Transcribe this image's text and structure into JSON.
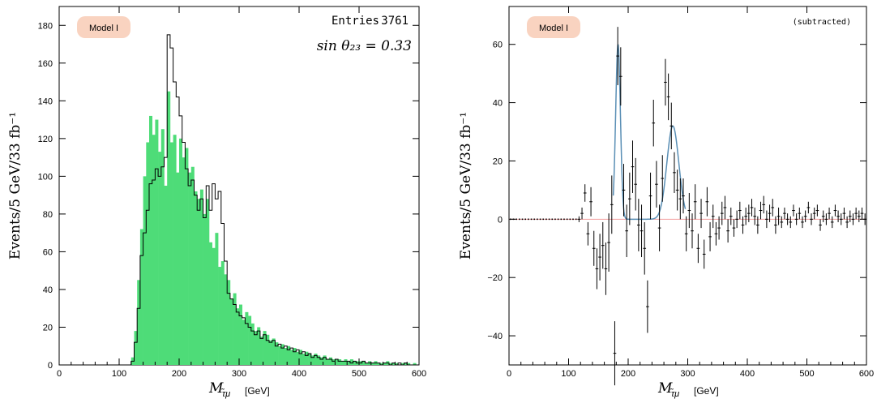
{
  "chart_data": [
    {
      "type": "bar",
      "badge": "Model I",
      "stat_label": "Entries",
      "stat_value": "3761",
      "annotation": "sin θ₂₃ = 0.33",
      "xlabel": "M",
      "xlabel_sub": "τ̃μ",
      "xlabel_unit": "[GeV]",
      "ylabel": "Events/5 GeV/33 fb⁻¹",
      "xlim": [
        0,
        600
      ],
      "ylim": [
        0,
        190
      ],
      "x_ticks": [
        0,
        100,
        200,
        300,
        400,
        500,
        600
      ],
      "y_ticks": [
        0,
        20,
        40,
        60,
        80,
        100,
        120,
        140,
        160,
        180
      ],
      "bin_width": 5,
      "colors": {
        "filled": "#4edc78",
        "outline": "#000000"
      },
      "series": [
        {
          "style": "filled",
          "x": [
            120,
            125,
            130,
            135,
            140,
            145,
            150,
            155,
            160,
            165,
            170,
            175,
            180,
            185,
            190,
            195,
            200,
            205,
            210,
            215,
            220,
            225,
            230,
            235,
            240,
            245,
            250,
            255,
            260,
            265,
            270,
            275,
            280,
            285,
            290,
            295,
            300,
            305,
            310,
            315,
            320,
            325,
            330,
            335,
            340,
            345,
            350,
            355,
            360,
            365,
            370,
            375,
            380,
            385,
            390,
            395,
            400,
            405,
            410,
            415,
            420,
            425,
            430,
            435,
            440,
            445,
            450,
            455,
            460,
            465,
            470,
            475,
            480,
            485,
            490,
            495,
            500,
            505,
            510,
            515,
            520,
            525,
            530,
            535,
            540,
            545,
            550,
            555,
            560,
            565,
            570,
            575,
            580,
            585,
            590,
            595
          ],
          "values": [
            4,
            18,
            45,
            72,
            100,
            118,
            132,
            122,
            130,
            113,
            125,
            95,
            145,
            118,
            122,
            102,
            120,
            110,
            115,
            102,
            105,
            92,
            88,
            93,
            80,
            88,
            65,
            62,
            70,
            52,
            55,
            48,
            45,
            35,
            38,
            30,
            32,
            24,
            28,
            26,
            22,
            18,
            20,
            15,
            18,
            16,
            13,
            14,
            12,
            10,
            11,
            9,
            10,
            8,
            9,
            7,
            8,
            6,
            7,
            6,
            5,
            6,
            5,
            4,
            5,
            3,
            4,
            3,
            3,
            3,
            2,
            3,
            2,
            3,
            2,
            2,
            2,
            2,
            1,
            2,
            1,
            2,
            1,
            1,
            1,
            2,
            1,
            1,
            1,
            0,
            1,
            1,
            1,
            0,
            1,
            0
          ]
        },
        {
          "style": "outline",
          "x": [
            120,
            125,
            130,
            135,
            140,
            145,
            150,
            155,
            160,
            165,
            170,
            175,
            180,
            185,
            190,
            195,
            200,
            205,
            210,
            215,
            220,
            225,
            230,
            235,
            240,
            245,
            250,
            255,
            260,
            265,
            270,
            275,
            280,
            285,
            290,
            295,
            300,
            305,
            310,
            315,
            320,
            325,
            330,
            335,
            340,
            345,
            350,
            355,
            360,
            365,
            370,
            375,
            380,
            385,
            390,
            395,
            400,
            405,
            410,
            415,
            420,
            425,
            430,
            435,
            440,
            445,
            450,
            455,
            460,
            465,
            470,
            475,
            480,
            485,
            490,
            495,
            500,
            505,
            510,
            515,
            520,
            525,
            530,
            535,
            540,
            545,
            550,
            555,
            560,
            565,
            570,
            575,
            580,
            585,
            590,
            595
          ],
          "values": [
            2,
            12,
            30,
            58,
            70,
            82,
            96,
            98,
            104,
            100,
            105,
            110,
            175,
            168,
            150,
            142,
            132,
            118,
            104,
            95,
            98,
            90,
            82,
            88,
            78,
            95,
            82,
            96,
            88,
            92,
            75,
            55,
            38,
            35,
            32,
            28,
            26,
            25,
            22,
            20,
            18,
            16,
            18,
            14,
            16,
            13,
            12,
            13,
            10,
            11,
            9,
            10,
            8,
            9,
            7,
            8,
            6,
            7,
            5,
            6,
            4,
            5,
            4,
            3,
            4,
            3,
            3,
            2,
            3,
            2,
            2,
            2,
            2,
            1,
            2,
            1,
            1,
            2,
            1,
            1,
            1,
            1,
            1,
            0,
            1,
            1,
            0,
            1,
            0,
            1,
            0,
            1,
            0,
            0,
            0,
            0
          ]
        }
      ]
    },
    {
      "type": "scatter",
      "badge": "Model I",
      "stat_label": "(subtracted)",
      "xlabel": "M",
      "xlabel_sub": "τ̃μ",
      "xlabel_unit": "[GeV]",
      "ylabel": "Events/5 GeV/33 fb⁻¹",
      "xlim": [
        0,
        600
      ],
      "ylim": [
        -50,
        73
      ],
      "x_ticks": [
        0,
        100,
        200,
        300,
        400,
        500,
        600
      ],
      "y_ticks": [
        -40,
        -20,
        0,
        20,
        40,
        60
      ],
      "colors": {
        "points": "#000000",
        "fit": "#5a8fb5",
        "baseline": "#f2a0a0"
      },
      "points": {
        "x": [
          117.5,
          122.5,
          127.5,
          132.5,
          137.5,
          142.5,
          147.5,
          152.5,
          157.5,
          162.5,
          167.5,
          172.5,
          177.5,
          182.5,
          187.5,
          192.5,
          197.5,
          202.5,
          207.5,
          212.5,
          217.5,
          222.5,
          227.5,
          232.5,
          237.5,
          242.5,
          247.5,
          252.5,
          257.5,
          262.5,
          267.5,
          272.5,
          277.5,
          282.5,
          287.5,
          292.5,
          297.5,
          302.5,
          307.5,
          312.5,
          317.5,
          322.5,
          327.5,
          332.5,
          337.5,
          342.5,
          347.5,
          352.5,
          357.5,
          362.5,
          367.5,
          372.5,
          377.5,
          382.5,
          387.5,
          392.5,
          397.5,
          402.5,
          407.5,
          412.5,
          417.5,
          422.5,
          427.5,
          432.5,
          437.5,
          442.5,
          447.5,
          452.5,
          457.5,
          462.5,
          467.5,
          472.5,
          477.5,
          482.5,
          487.5,
          492.5,
          497.5,
          502.5,
          507.5,
          512.5,
          517.5,
          522.5,
          527.5,
          532.5,
          537.5,
          542.5,
          547.5,
          552.5,
          557.5,
          562.5,
          567.5,
          572.5,
          577.5,
          582.5,
          587.5,
          592.5,
          597.5
        ],
        "y": [
          0,
          2,
          9,
          -5,
          6,
          -10,
          -17,
          -13,
          -9,
          -17,
          -8,
          5,
          -46,
          56,
          49,
          10,
          -4,
          7,
          18,
          12,
          -2,
          -4,
          -10,
          -30,
          8,
          33,
          12,
          -3,
          14,
          47,
          42,
          32,
          16,
          10,
          7,
          8,
          -5,
          3,
          -4,
          6,
          -10,
          2,
          -12,
          6,
          -6,
          1,
          -5,
          -3,
          2,
          4,
          -4,
          1,
          -3,
          0,
          3,
          -2,
          1,
          2,
          4,
          1,
          -2,
          3,
          5,
          0,
          2,
          4,
          -2,
          1,
          -1,
          2,
          0,
          -1,
          3,
          0,
          2,
          -1,
          1,
          4,
          0,
          2,
          3,
          -2,
          1,
          0,
          2,
          -1,
          3,
          1,
          0,
          2,
          -1,
          1,
          0,
          2,
          1,
          2,
          0
        ],
        "err": [
          1,
          2,
          3,
          4,
          5,
          6,
          7,
          8,
          8,
          9,
          10,
          10,
          11,
          10,
          10,
          9,
          9,
          9,
          9,
          9,
          9,
          9,
          9,
          9,
          8,
          8,
          8,
          8,
          8,
          8,
          8,
          8,
          7,
          7,
          7,
          6,
          6,
          6,
          6,
          6,
          5,
          5,
          5,
          5,
          5,
          4,
          4,
          4,
          4,
          4,
          4,
          3,
          3,
          3,
          3,
          3,
          3,
          3,
          3,
          3,
          3,
          3,
          3,
          3,
          3,
          3,
          3,
          3,
          2,
          2,
          2,
          2,
          2,
          2,
          2,
          2,
          2,
          2,
          2,
          2,
          2,
          2,
          2,
          2,
          2,
          2,
          2,
          2,
          2,
          2,
          2,
          2,
          2,
          2,
          2,
          2,
          2
        ]
      },
      "fit_peaks": [
        {
          "mean": 183,
          "sigma": 4,
          "amplitude": 60
        },
        {
          "mean": 275,
          "sigma": 10,
          "amplitude": 32
        }
      ]
    }
  ]
}
